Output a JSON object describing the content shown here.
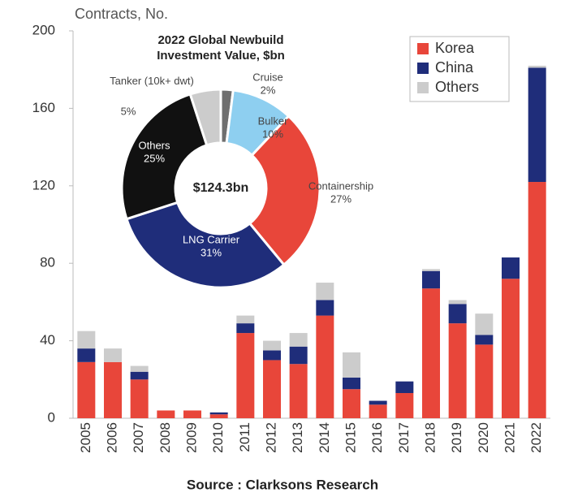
{
  "chart_data": [
    {
      "type": "bar",
      "stacked": true,
      "y_label": "Contracts, No.",
      "categories": [
        "2005",
        "2006",
        "2007",
        "2008",
        "2009",
        "2010",
        "2011",
        "2012",
        "2013",
        "2014",
        "2015",
        "2016",
        "2017",
        "2018",
        "2019",
        "2020",
        "2021",
        "2022"
      ],
      "series": [
        {
          "name": "Korea",
          "color": "#e8463a",
          "values": [
            29,
            29,
            20,
            4,
            4,
            2,
            44,
            30,
            28,
            53,
            15,
            7,
            13,
            67,
            49,
            38,
            72,
            122
          ]
        },
        {
          "name": "China",
          "color": "#1f2d7a",
          "values": [
            7,
            0,
            4,
            0,
            0,
            1,
            5,
            5,
            9,
            8,
            6,
            2,
            6,
            9,
            10,
            5,
            11,
            59
          ]
        },
        {
          "name": "Others",
          "color": "#cccccc",
          "values": [
            9,
            7,
            3,
            0,
            0,
            0,
            4,
            5,
            7,
            9,
            13,
            0,
            0,
            1,
            2,
            11,
            0,
            1
          ]
        }
      ],
      "ylim": [
        0,
        200
      ],
      "yticks": [
        0,
        40,
        80,
        120,
        160,
        200
      ],
      "grid": false,
      "legend": "top-right",
      "source": "Source : Clarksons Research"
    },
    {
      "type": "pie",
      "donut": true,
      "title": "2022 Global Newbuild Investment Value, $bn",
      "center_label": "$124.3bn",
      "categories": [
        "Cruise",
        "Bulker",
        "Containership",
        "LNG Carrier",
        "Others",
        "Tanker (10k+ dwt)"
      ],
      "values": [
        2,
        10,
        27,
        31,
        25,
        5
      ],
      "value_labels": [
        "2%",
        "10%",
        "27%",
        "31%",
        "25%",
        "5%"
      ],
      "colors": [
        "#6f6f6f",
        "#8ecff0",
        "#e8463a",
        "#1f2d7a",
        "#111111",
        "#cccccc"
      ]
    }
  ]
}
